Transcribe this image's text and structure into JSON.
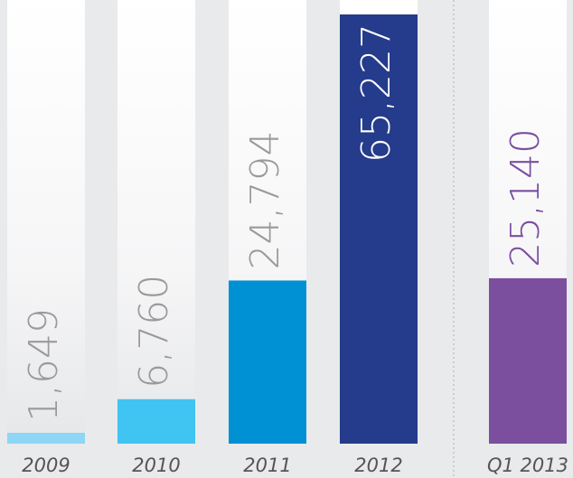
{
  "chart_data": {
    "type": "bar",
    "categories": [
      "2009",
      "2010",
      "2011",
      "2012",
      "Q1 2013"
    ],
    "values": [
      1649,
      6760,
      24794,
      65227,
      25140
    ],
    "value_labels": [
      "1,649",
      "6,760",
      "24,794",
      "65,227",
      "25,140"
    ],
    "colors": [
      "#8dd6f5",
      "#40c4f2",
      "#0091d4",
      "#253b8b",
      "#7b4f9e"
    ],
    "label_colors": [
      "#9a9a9a",
      "#9a9a9a",
      "#9a9a9a",
      "#ffffff",
      "#7b4f9e"
    ],
    "ylim": [
      0,
      65227
    ]
  }
}
